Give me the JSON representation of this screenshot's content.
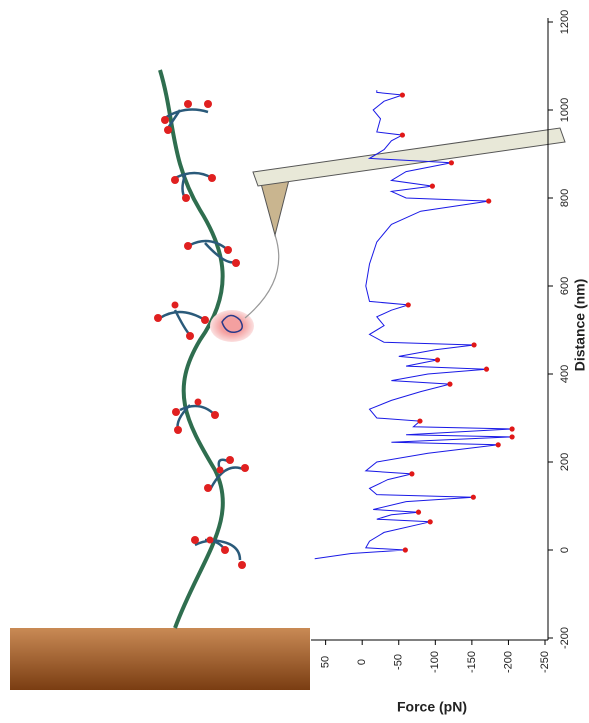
{
  "chart_data": {
    "type": "line",
    "x_label": "Distance (nm)",
    "y_label": "Force (pN)",
    "xlim": [
      -200,
      1200
    ],
    "xticks": [
      -200,
      0,
      200,
      400,
      600,
      800,
      1000,
      1200
    ],
    "ylim": [
      70,
      -250
    ],
    "yticks": [
      50,
      0,
      -50,
      -100,
      -150,
      -200,
      -250
    ],
    "series": [
      {
        "color": "#1a1ae6",
        "marker": "none",
        "x": [
          -20,
          -8,
          0,
          5,
          20,
          40,
          64,
          70,
          80,
          86,
          92,
          110,
          120,
          126,
          140,
          160,
          173,
          180,
          200,
          220,
          239,
          245,
          257,
          262,
          275,
          280,
          293,
          300,
          320,
          340,
          360,
          377,
          385,
          400,
          411,
          418,
          432,
          440,
          455,
          466,
          472,
          490,
          510,
          530,
          545,
          557,
          565,
          600,
          650,
          700,
          740,
          770,
          793,
          800,
          815,
          827,
          840,
          860,
          880,
          890,
          910,
          930,
          943,
          950,
          980,
          1000,
          1020,
          1034,
          1040,
          1045
        ],
        "values": [
          65,
          15,
          -59,
          -5,
          -10,
          -30,
          -93,
          -20,
          -40,
          -77,
          -15,
          -60,
          -152,
          -20,
          -10,
          -35,
          -68,
          -5,
          -20,
          -90,
          -186,
          -40,
          -205,
          -60,
          -205,
          -70,
          -79,
          -20,
          -10,
          -40,
          -80,
          -120,
          -40,
          -90,
          -170,
          -60,
          -103,
          -50,
          -100,
          -153,
          -30,
          -10,
          -30,
          -20,
          -40,
          -63,
          -10,
          -5,
          -10,
          -20,
          -40,
          -80,
          -173,
          -60,
          -40,
          -96,
          -40,
          -60,
          -122,
          -10,
          -30,
          -40,
          -55,
          -20,
          -25,
          -15,
          -30,
          -55,
          -20,
          -20
        ]
      },
      {
        "color": "#e01818",
        "marker": "dot",
        "x": [
          0,
          64,
          86,
          120,
          173,
          239,
          257,
          275,
          293,
          377,
          411,
          432,
          466,
          557,
          793,
          827,
          880,
          943,
          1034
        ],
        "values": [
          -59,
          -93,
          -77,
          -152,
          -68,
          -186,
          -205,
          -205,
          -79,
          -120,
          -170,
          -103,
          -153,
          -63,
          -173,
          -96,
          -122,
          -55,
          -55
        ]
      }
    ]
  }
}
